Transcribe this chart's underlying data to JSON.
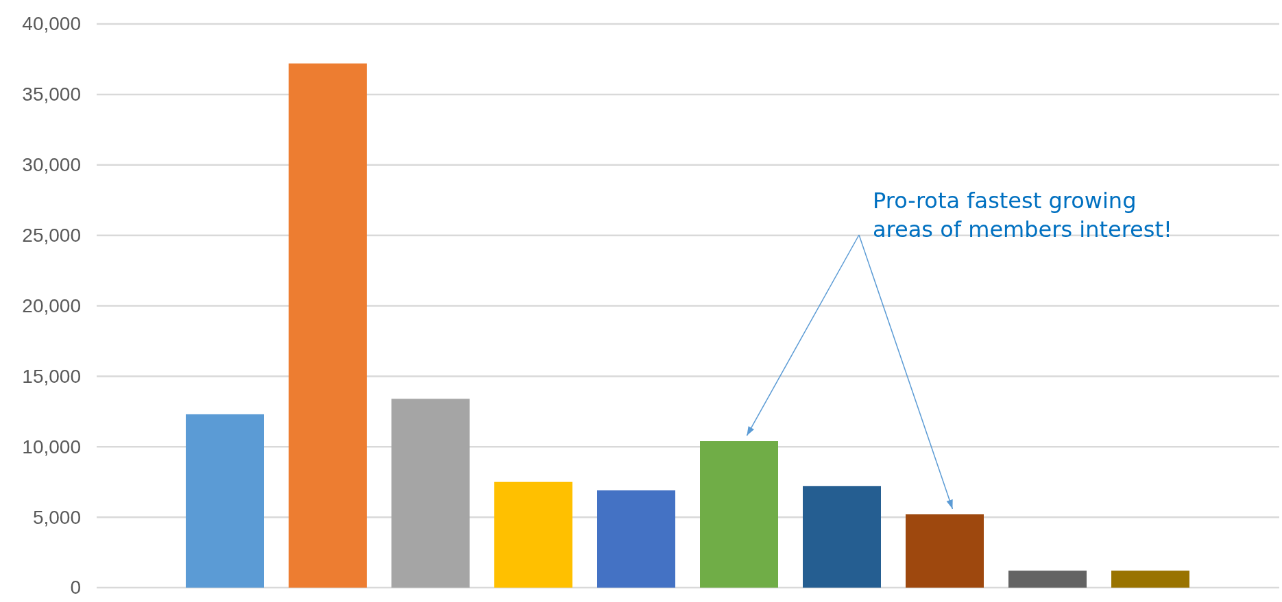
{
  "chart_data": {
    "type": "bar",
    "categories": [
      null,
      null,
      null,
      null,
      null,
      null,
      null,
      null,
      null,
      null
    ],
    "values": [
      12300,
      37200,
      13400,
      7500,
      6900,
      10400,
      7200,
      5200,
      1200,
      1200
    ],
    "colors": [
      "#5b9bd5",
      "#ed7d31",
      "#a5a5a5",
      "#ffc000",
      "#4472c4",
      "#70ad47",
      "#255e91",
      "#9e480e",
      "#636363",
      "#997300"
    ],
    "ylim": [
      0,
      40000
    ],
    "yticks": [
      0,
      {
        "value": 5000,
        "label": "5,000"
      },
      {
        "value": 10000,
        "label": "10,000"
      },
      {
        "value": 15000,
        "label": "15,000"
      },
      {
        "value": 20000,
        "label": "20,000"
      },
      {
        "value": 25000,
        "label": "25,000"
      },
      {
        "value": 30000,
        "label": "30,000"
      },
      {
        "value": 35000,
        "label": "35,000"
      },
      {
        "value": 40000,
        "label": "40,000"
      }
    ],
    "grid": "y",
    "annotations": [
      "Pro-rota fastest growing areas of members interest!"
    ]
  }
}
